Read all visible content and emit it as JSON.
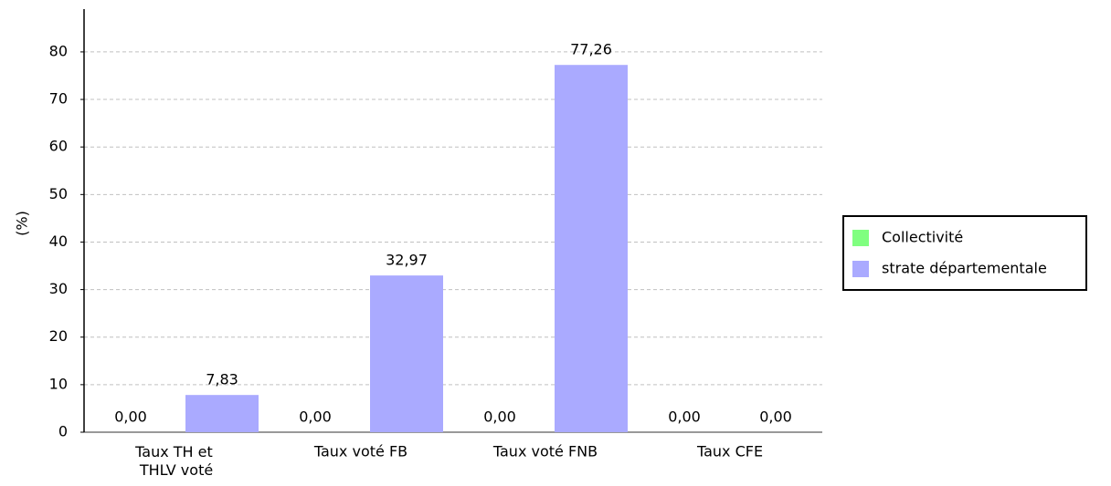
{
  "chart_data": {
    "type": "bar",
    "y_label": "(%)",
    "categories": [
      "Taux TH et THLV voté",
      "Taux voté FB",
      "Taux voté FNB",
      "Taux CFE"
    ],
    "series": [
      {
        "name": "Collectivité",
        "color": "#80ff80",
        "values": [
          0,
          0,
          0,
          0
        ],
        "value_labels": [
          "0,00",
          "0,00",
          "0,00",
          "0,00"
        ]
      },
      {
        "name": "strate départementale",
        "color": "#aaaaff",
        "values": [
          7.83,
          32.97,
          77.26,
          0
        ],
        "value_labels": [
          "7,83",
          "32,97",
          "77,26",
          "0,00"
        ]
      }
    ],
    "ylim": [
      0,
      89
    ],
    "yticks": [
      0,
      10,
      20,
      30,
      40,
      50,
      60,
      70,
      80
    ],
    "grid": true,
    "legend": "right"
  }
}
